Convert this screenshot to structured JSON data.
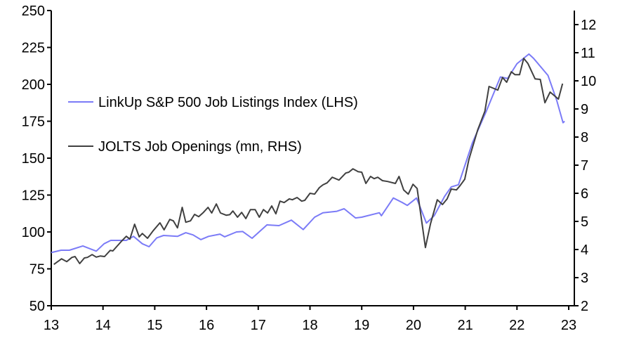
{
  "chart_data": {
    "type": "line",
    "title": "",
    "xlabel": "",
    "ylabel_left": "",
    "ylabel_right": "",
    "xlim": [
      13,
      23
    ],
    "ylim_left": [
      50,
      250
    ],
    "ylim_right": [
      2,
      12
    ],
    "x_ticks": [
      "13",
      "14",
      "15",
      "16",
      "17",
      "18",
      "19",
      "20",
      "21",
      "22",
      "23"
    ],
    "y_ticks_left": [
      "50",
      "75",
      "100",
      "125",
      "150",
      "175",
      "200",
      "225",
      "250"
    ],
    "y_ticks_right": [
      "2",
      "3",
      "4",
      "5",
      "6",
      "7",
      "8",
      "9",
      "10",
      "11",
      "12"
    ],
    "grid": false,
    "legend_position": "top-left",
    "colors": {
      "linkup": "#7B7BF7",
      "jolts": "#404040",
      "axis": "#000000"
    },
    "series": [
      {
        "name": "LinkUp S&P 500 Job Listings Index (LHS)",
        "axis": "left",
        "x": [
          13.0,
          13.19,
          13.35,
          13.61,
          13.87,
          14.02,
          14.15,
          14.45,
          14.59,
          14.76,
          14.89,
          15.04,
          15.17,
          15.44,
          15.6,
          15.74,
          15.89,
          16.04,
          16.26,
          16.35,
          16.58,
          16.7,
          16.88,
          17.17,
          17.4,
          17.64,
          17.87,
          18.09,
          18.25,
          18.52,
          18.66,
          18.88,
          19.0,
          19.34,
          19.38,
          19.61,
          19.78,
          19.88,
          20.06,
          20.25,
          20.4,
          20.6,
          20.73,
          20.87,
          21.14,
          21.41,
          21.68,
          21.82,
          22.0,
          22.23,
          22.32,
          22.6,
          22.77,
          22.89,
          22.92
        ],
        "y": [
          86,
          87.6,
          87.6,
          90.5,
          87,
          92,
          94.3,
          94.3,
          97,
          92,
          90,
          96,
          97.6,
          97,
          99.5,
          98,
          94.8,
          97,
          98.5,
          96.7,
          100,
          100.3,
          95.7,
          104.8,
          104.3,
          108,
          101.6,
          110,
          113,
          114,
          115.7,
          109.5,
          110,
          113,
          111,
          123,
          120,
          118,
          123,
          106,
          111,
          124,
          130.5,
          132,
          160.5,
          182,
          205,
          204,
          214,
          220.5,
          217.6,
          206,
          189,
          174,
          175
        ]
      },
      {
        "name": "JOLTS Job Openings (mn, RHS)",
        "axis": "right",
        "x": [
          13.05,
          13.2,
          13.3,
          13.4,
          13.46,
          13.55,
          13.64,
          13.7,
          13.79,
          13.87,
          13.95,
          14.03,
          14.14,
          14.19,
          14.36,
          14.45,
          14.52,
          14.61,
          14.7,
          14.76,
          14.86,
          14.97,
          15.1,
          15.18,
          15.29,
          15.36,
          15.44,
          15.53,
          15.6,
          15.69,
          15.77,
          15.85,
          15.94,
          16.03,
          16.1,
          16.19,
          16.27,
          16.38,
          16.45,
          16.51,
          16.6,
          16.68,
          16.76,
          16.85,
          16.94,
          17.02,
          17.1,
          17.18,
          17.26,
          17.34,
          17.42,
          17.5,
          17.6,
          17.66,
          17.75,
          17.84,
          17.9,
          18.0,
          18.09,
          18.18,
          18.25,
          18.33,
          18.43,
          18.56,
          18.69,
          18.75,
          18.83,
          18.93,
          19.0,
          19.08,
          19.17,
          19.24,
          19.31,
          19.4,
          19.5,
          19.65,
          19.72,
          19.81,
          19.9,
          19.99,
          20.07,
          20.23,
          20.33,
          20.46,
          20.56,
          20.65,
          20.73,
          20.83,
          20.9,
          20.99,
          21.07,
          21.24,
          21.38,
          21.46,
          21.63,
          21.72,
          21.8,
          21.89,
          21.96,
          22.05,
          22.13,
          22.21,
          22.35,
          22.45,
          22.54,
          22.64,
          22.8,
          22.88
        ],
        "y": [
          3.47,
          3.67,
          3.57,
          3.72,
          3.75,
          3.5,
          3.7,
          3.72,
          3.82,
          3.73,
          3.77,
          3.75,
          3.97,
          3.95,
          4.3,
          4.47,
          4.37,
          4.9,
          4.45,
          4.57,
          4.4,
          4.67,
          4.95,
          4.7,
          5.07,
          5.02,
          4.77,
          5.5,
          4.97,
          5.02,
          5.25,
          5.17,
          5.32,
          5.5,
          5.3,
          5.62,
          5.3,
          5.22,
          5.24,
          5.37,
          5.15,
          5.32,
          5.1,
          5.42,
          5.42,
          5.15,
          5.42,
          5.3,
          5.55,
          5.27,
          5.72,
          5.67,
          5.8,
          5.77,
          5.85,
          5.72,
          5.75,
          6.0,
          5.97,
          6.2,
          6.3,
          6.37,
          6.57,
          6.47,
          6.72,
          6.75,
          6.87,
          6.77,
          6.75,
          6.35,
          6.6,
          6.52,
          6.57,
          6.45,
          6.42,
          6.35,
          6.6,
          6.12,
          5.97,
          6.32,
          6.17,
          4.07,
          4.92,
          5.77,
          5.6,
          5.8,
          6.15,
          6.12,
          6.27,
          6.5,
          7.2,
          8.25,
          8.92,
          9.8,
          9.67,
          10.12,
          9.95,
          10.32,
          10.22,
          10.22,
          10.8,
          10.62,
          10.07,
          10.05,
          9.22,
          9.6,
          9.35,
          9.9
        ]
      }
    ]
  }
}
